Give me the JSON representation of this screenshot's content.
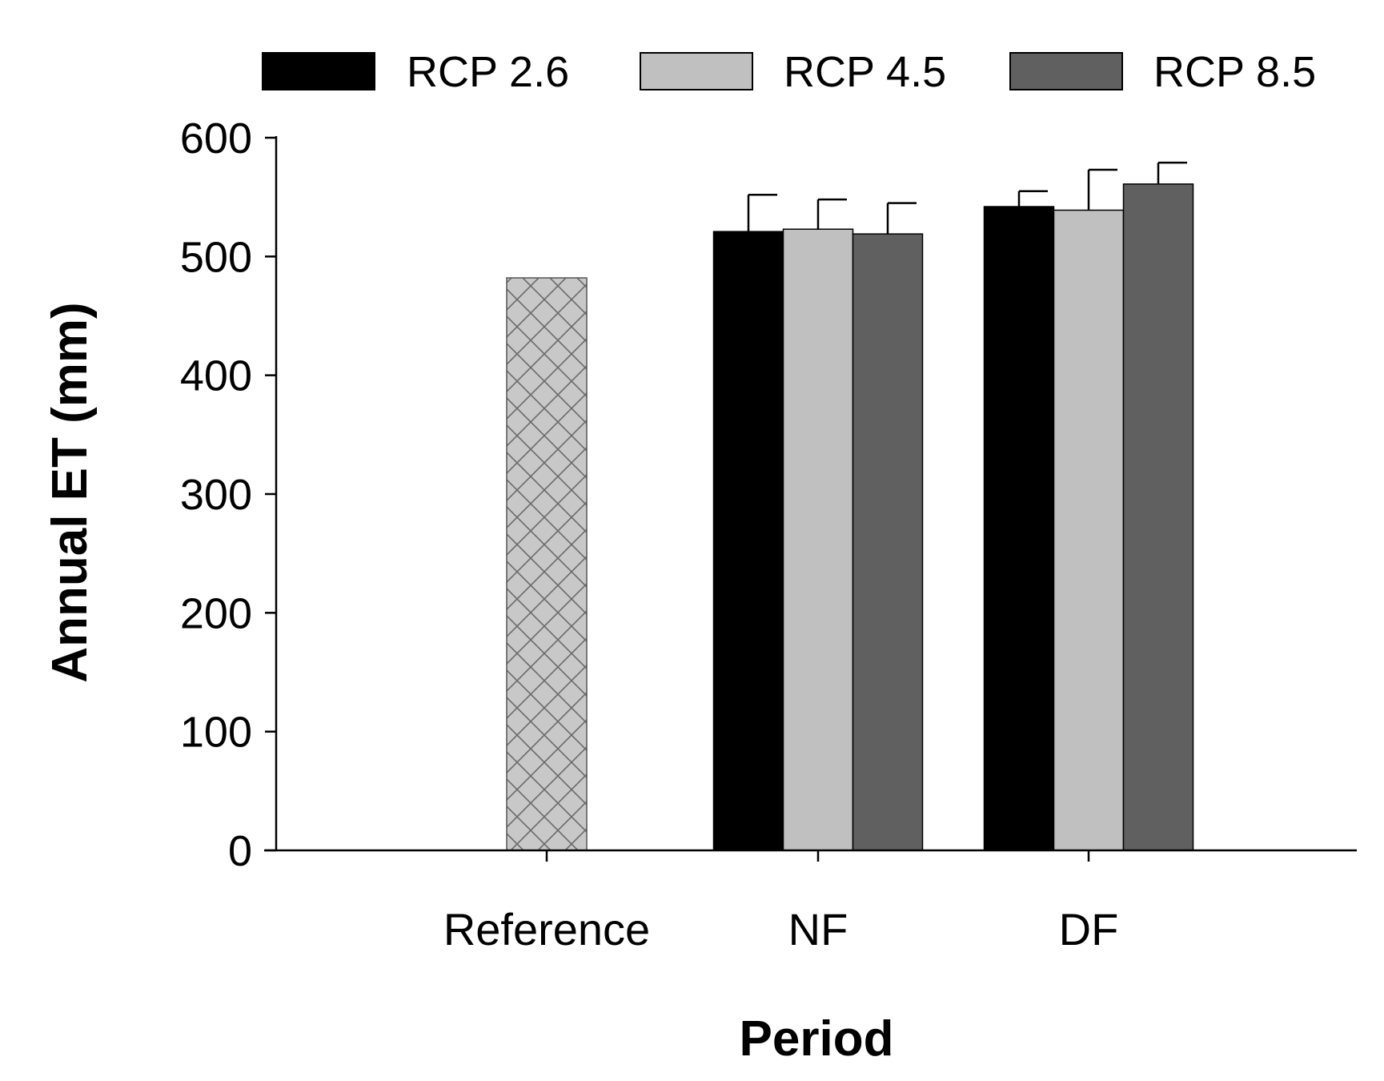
{
  "chart_data": {
    "type": "bar",
    "title": "",
    "xlabel": "Period",
    "ylabel": "Annual ET (mm)",
    "ylim": [
      0,
      600
    ],
    "yticks": [
      0,
      100,
      200,
      300,
      400,
      500,
      600
    ],
    "categories": [
      "Reference",
      "NF",
      "DF"
    ],
    "reference": {
      "category": "Reference",
      "value": 482,
      "pattern": "crosshatch"
    },
    "series": [
      {
        "name": "RCP 2.6",
        "color": "#000000",
        "values": [
          null,
          521,
          542
        ],
        "errors": [
          null,
          31,
          13
        ]
      },
      {
        "name": "RCP 4.5",
        "color": "#c0c0c0",
        "values": [
          null,
          523,
          539
        ],
        "errors": [
          null,
          25,
          34
        ]
      },
      {
        "name": "RCP 8.5",
        "color": "#606060",
        "values": [
          null,
          519,
          561
        ],
        "errors": [
          null,
          26,
          18
        ]
      }
    ],
    "legend": {
      "placement": "top"
    }
  }
}
